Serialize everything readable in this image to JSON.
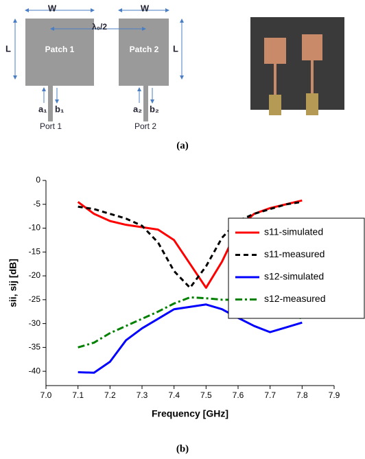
{
  "diagram": {
    "width_labels": [
      "W",
      "W"
    ],
    "length_labels": [
      "L",
      "L"
    ],
    "spacing_label": "λ₀/2",
    "patch_labels": [
      "Patch 1",
      "Patch 2"
    ],
    "wave_labels": [
      "a₁",
      "b₁",
      "a₂",
      "b₂"
    ],
    "port_labels": [
      "Port 1",
      "Port 2"
    ]
  },
  "panel_labels": [
    "(a)",
    "(b)"
  ],
  "chart_data": {
    "type": "line",
    "x_label": "Frequency [GHz]",
    "y_label": "sii, sij [dB]",
    "x": [
      7.1,
      7.15,
      7.2,
      7.25,
      7.3,
      7.35,
      7.4,
      7.45,
      7.5,
      7.55,
      7.6,
      7.65,
      7.7,
      7.75,
      7.8
    ],
    "series": [
      {
        "name": "s11-simulated",
        "color": "#ff0000",
        "dash": "solid",
        "values": [
          -4.5,
          -7,
          -8.5,
          -9.3,
          -9.8,
          -10.3,
          -12.5,
          -17.5,
          -22.5,
          -17,
          -10,
          -7,
          -5.8,
          -5,
          -4.2
        ]
      },
      {
        "name": "s11-measured",
        "color": "#000000",
        "dash": "dashed",
        "values": [
          -5.5,
          -6,
          -7,
          -8,
          -9.5,
          -13,
          -19,
          -22.5,
          -18,
          -12,
          -8.5,
          -7,
          -6,
          -5,
          -4.5
        ]
      },
      {
        "name": "s12-simulated",
        "color": "#0000ff",
        "dash": "solid",
        "values": [
          -40.2,
          -40.3,
          -38,
          -33.5,
          -31,
          -29,
          -27,
          -26.5,
          -26,
          -27,
          -28.8,
          -30.5,
          -31.8,
          -30.8,
          -29.8
        ]
      },
      {
        "name": "s12-measured",
        "color": "#008000",
        "dash": "dashdot",
        "values": [
          -35,
          -34,
          -32,
          -30.5,
          -29,
          -27.5,
          -25.8,
          -24.5,
          -24.7,
          -25,
          -25,
          -25.2,
          -26.5,
          -27.5,
          -29
        ]
      }
    ],
    "xlim": [
      7.0,
      7.9
    ],
    "ylim": [
      -43,
      0
    ],
    "xticks": [
      {
        "value": 7,
        "label": "7.0"
      },
      7.1,
      7.2,
      7.3,
      7.4,
      7.5,
      7.6,
      7.7,
      7.8,
      7.9
    ],
    "yticks": [
      0,
      -5,
      -10,
      -15,
      -20,
      -25,
      -30,
      -35,
      -40
    ],
    "legend": "right"
  }
}
